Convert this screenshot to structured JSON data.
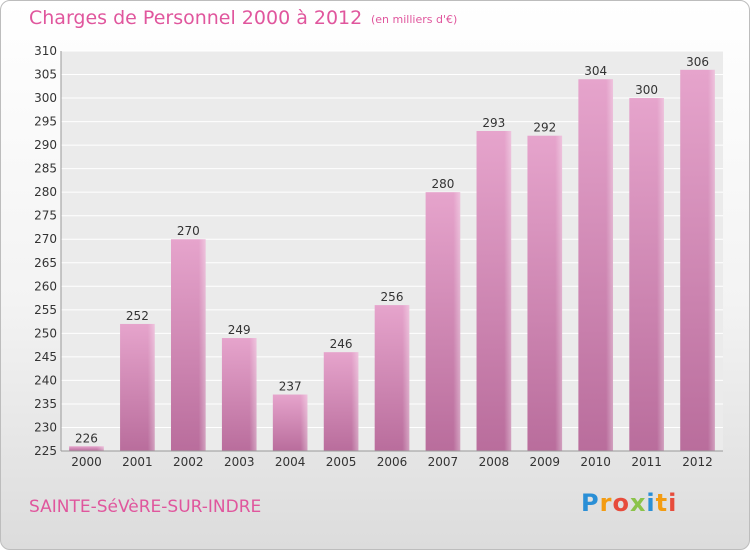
{
  "header": {
    "title": "Charges de Personnel 2000 à 2012",
    "unit": "(en milliers d'€)"
  },
  "footer": {
    "city": "SAINTE-SéVèRE-SUR-INDRE",
    "brand": "Proxiti"
  },
  "colors": {
    "bar": "#d98ab8",
    "accent": "#e0569d"
  },
  "chart_data": {
    "type": "bar",
    "categories": [
      "2000",
      "2001",
      "2002",
      "2003",
      "2004",
      "2005",
      "2006",
      "2007",
      "2008",
      "2009",
      "2010",
      "2011",
      "2012"
    ],
    "values": [
      226,
      252,
      270,
      249,
      237,
      246,
      256,
      280,
      293,
      292,
      304,
      300,
      306
    ],
    "ylim": [
      225,
      310
    ],
    "yticks": [
      225,
      230,
      235,
      240,
      245,
      250,
      255,
      260,
      265,
      270,
      275,
      280,
      285,
      290,
      295,
      300,
      305,
      310
    ],
    "grid": true
  }
}
